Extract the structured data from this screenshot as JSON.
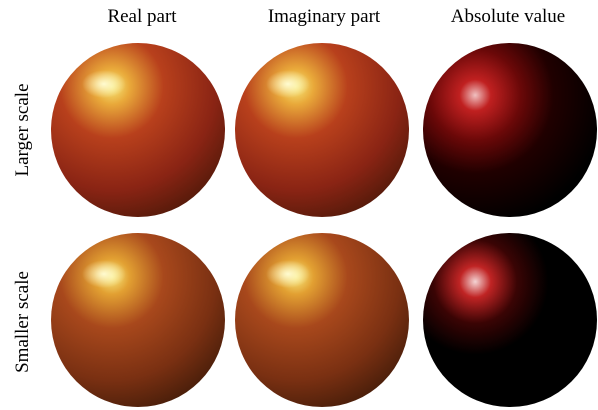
{
  "columns": [
    "Real part",
    "Imaginary part",
    "Absolute value"
  ],
  "rows": [
    "Larger scale",
    "Smaller scale"
  ]
}
